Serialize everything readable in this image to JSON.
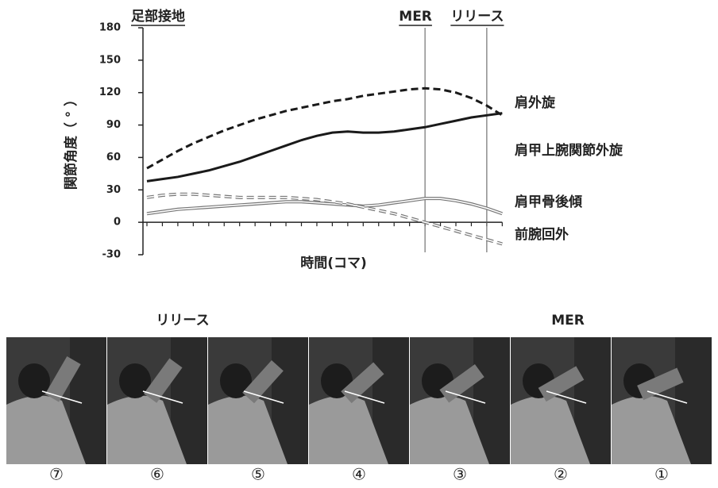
{
  "chart_data": {
    "type": "line",
    "y_label": "関節角度（ ° ）",
    "x_label": "時間(コマ)",
    "categories": [
      null,
      null,
      null,
      null,
      null,
      null,
      null,
      null,
      null,
      null,
      null,
      null,
      null,
      null,
      null,
      null,
      null,
      null,
      null,
      null,
      null,
      null,
      null,
      null
    ],
    "ylim": [
      -30,
      180
    ],
    "yticks": [
      -30,
      0,
      30,
      60,
      90,
      120,
      150,
      180
    ],
    "series": [
      {
        "name": "肩外旋",
        "color": "#1a1a1a",
        "style": "dashed",
        "values": [
          50,
          58,
          66,
          73,
          79,
          85,
          90,
          95,
          99,
          103,
          106,
          109,
          112,
          114,
          117,
          119,
          121,
          123,
          124,
          123,
          120,
          115,
          108,
          99
        ]
      },
      {
        "name": "肩甲上腕関節外旋",
        "color": "#1a1a1a",
        "style": "solid",
        "values": [
          38,
          40,
          42,
          45,
          48,
          52,
          56,
          61,
          66,
          71,
          76,
          80,
          83,
          84,
          83,
          83,
          84,
          86,
          88,
          91,
          94,
          97,
          99,
          101
        ]
      },
      {
        "name": "肩甲骨後傾",
        "color": "#777777",
        "style": "double",
        "values": [
          8,
          10,
          12,
          13,
          14,
          15,
          16,
          17,
          18,
          19,
          19,
          18,
          17,
          16,
          15,
          16,
          18,
          20,
          22,
          22,
          20,
          17,
          13,
          8
        ]
      },
      {
        "name": "前腕回外",
        "color": "#777777",
        "style": "double-dashed",
        "values": [
          23,
          25,
          26,
          26,
          25,
          24,
          23,
          23,
          23,
          23,
          22,
          21,
          19,
          17,
          14,
          11,
          8,
          4,
          0,
          -4,
          -8,
          -12,
          -16,
          -20
        ]
      }
    ],
    "annotations": [
      {
        "label": "足部接地",
        "x": 0,
        "line": false
      },
      {
        "label": "MER",
        "x": 18,
        "line": true
      },
      {
        "label": "リリース",
        "x": 22,
        "line": true
      }
    ]
  },
  "photo_strip": {
    "captions": [
      "リリース",
      "MER"
    ],
    "frames": [
      "⑦",
      "⑥",
      "⑤",
      "④",
      "③",
      "②",
      "①"
    ]
  }
}
